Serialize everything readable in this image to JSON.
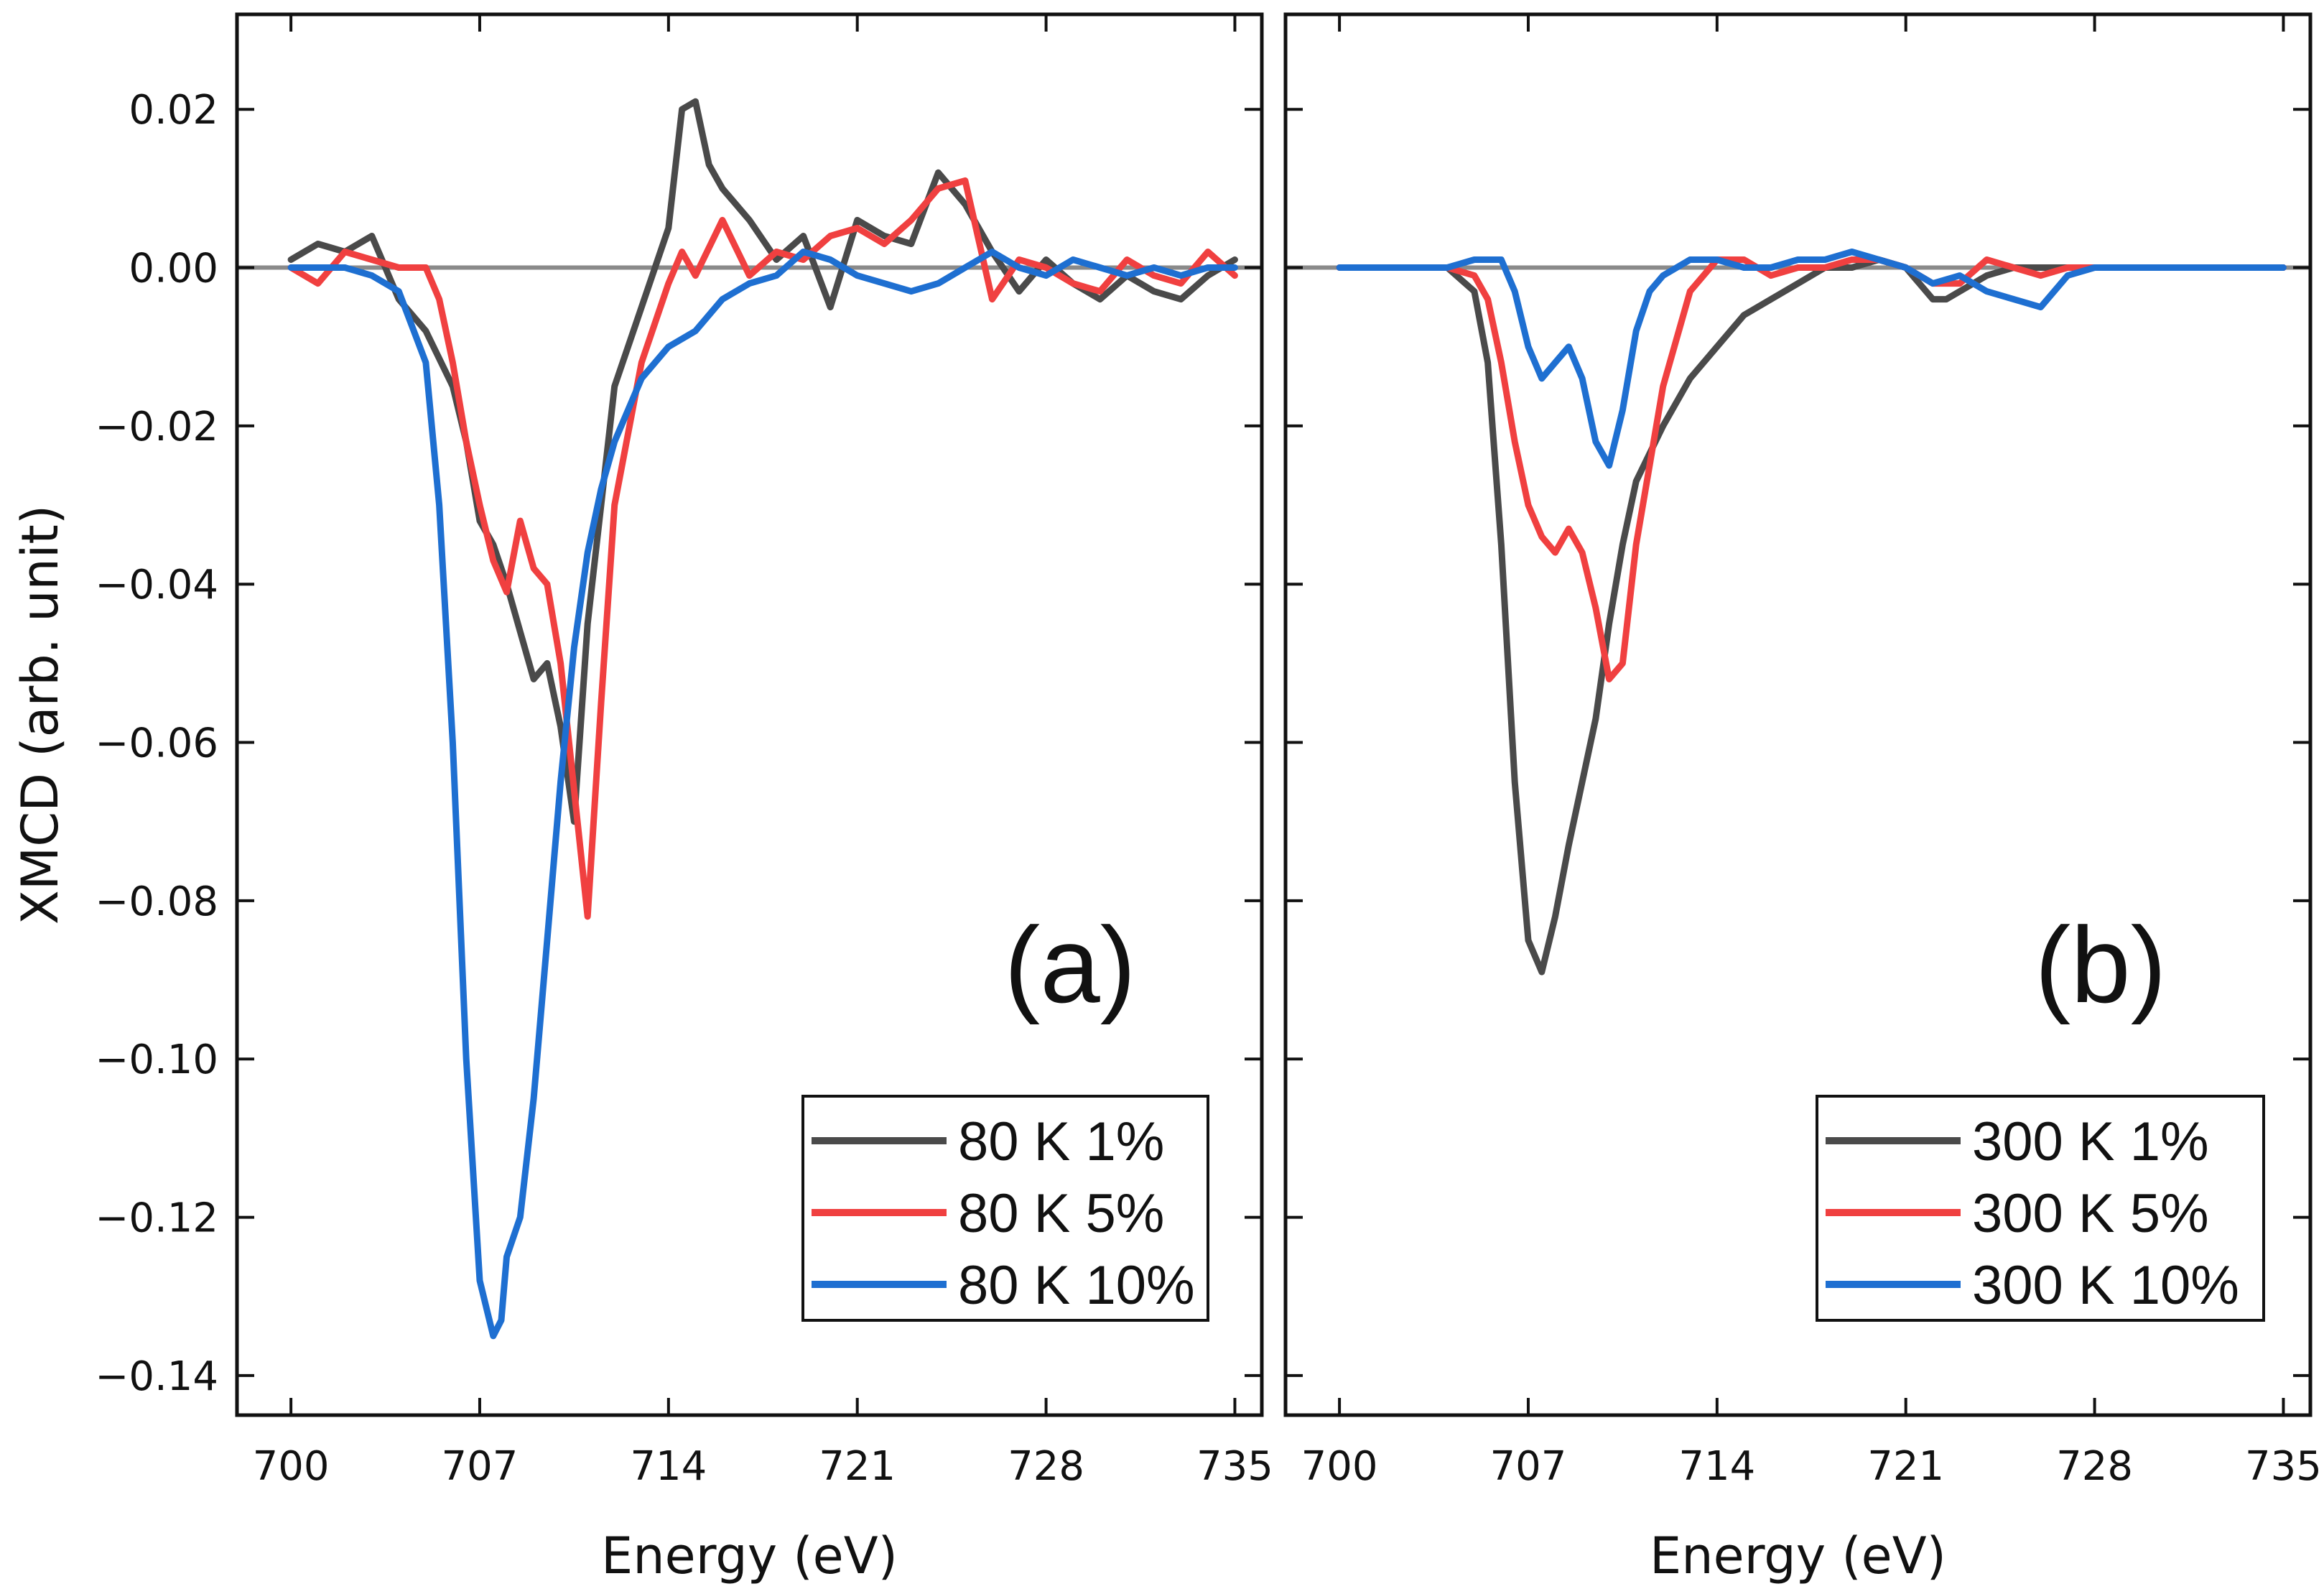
{
  "chart_data": [
    {
      "type": "line",
      "panel_label": "(a)",
      "xlabel": "Energy (eV)",
      "ylabel": "XMCD (arb. unit)",
      "xlim": [
        698,
        736
      ],
      "ylim": [
        -0.145,
        0.032
      ],
      "xticks": [
        700,
        707,
        714,
        721,
        728,
        735
      ],
      "xtick_labels": [
        "700",
        "707",
        "714",
        "721",
        "728",
        "735"
      ],
      "yticks": [
        0.02,
        0.0,
        -0.02,
        -0.04,
        -0.06,
        -0.08,
        -0.1,
        -0.12,
        -0.14
      ],
      "ytick_labels": [
        "0.02",
        "0.00",
        "−0.02",
        "−0.04",
        "−0.06",
        "−0.08",
        "−0.10",
        "−0.12",
        "−0.14"
      ],
      "zero_line": true,
      "legend_position": "bottom-right",
      "series": [
        {
          "name": "80 K 1%",
          "color": "#4a4a4a",
          "x": [
            700,
            701,
            702,
            703,
            704,
            705,
            706,
            706.5,
            707,
            707.5,
            708,
            708.5,
            709,
            709.5,
            710,
            710.5,
            711,
            711.5,
            712,
            713,
            714,
            714.5,
            715,
            715.5,
            716,
            717,
            718,
            719,
            720,
            721,
            722,
            723,
            724,
            725,
            726,
            727,
            728,
            729,
            730,
            731,
            732,
            733,
            734,
            735
          ],
          "values": [
            0.001,
            0.003,
            0.002,
            0.004,
            -0.004,
            -0.008,
            -0.015,
            -0.022,
            -0.032,
            -0.035,
            -0.04,
            -0.046,
            -0.052,
            -0.05,
            -0.058,
            -0.07,
            -0.045,
            -0.03,
            -0.015,
            -0.005,
            0.005,
            0.02,
            0.021,
            0.013,
            0.01,
            0.006,
            0.001,
            0.004,
            -0.005,
            0.006,
            0.004,
            0.003,
            0.012,
            0.008,
            0.002,
            -0.003,
            0.001,
            -0.002,
            -0.004,
            -0.001,
            -0.003,
            -0.004,
            -0.001,
            0.001
          ]
        },
        {
          "name": "80 K 5%",
          "color": "#f04040",
          "x": [
            700,
            701,
            702,
            703,
            704,
            705,
            705.5,
            706,
            706.5,
            707,
            707.5,
            708,
            708.5,
            709,
            709.5,
            710,
            710.5,
            711,
            711.5,
            712,
            713,
            714,
            714.5,
            715,
            716,
            717,
            718,
            719,
            720,
            721,
            722,
            723,
            724,
            725,
            726,
            727,
            728,
            729,
            730,
            731,
            732,
            733,
            734,
            735
          ],
          "values": [
            0.0,
            -0.002,
            0.002,
            0.001,
            0.0,
            0.0,
            -0.004,
            -0.012,
            -0.022,
            -0.03,
            -0.037,
            -0.041,
            -0.032,
            -0.038,
            -0.04,
            -0.05,
            -0.066,
            -0.082,
            -0.055,
            -0.03,
            -0.012,
            -0.002,
            0.002,
            -0.001,
            0.006,
            -0.001,
            0.002,
            0.001,
            0.004,
            0.005,
            0.003,
            0.006,
            0.01,
            0.011,
            -0.004,
            0.001,
            0.0,
            -0.002,
            -0.003,
            0.001,
            -0.001,
            -0.002,
            0.002,
            -0.001
          ]
        },
        {
          "name": "80 K 10%",
          "color": "#1e6fd1",
          "x": [
            700,
            701,
            702,
            703,
            704,
            705,
            705.5,
            706,
            706.5,
            707,
            707.5,
            707.8,
            708,
            708.5,
            709,
            709.5,
            710,
            710.5,
            711,
            711.5,
            712,
            713,
            714,
            715,
            716,
            717,
            718,
            719,
            720,
            721,
            722,
            723,
            724,
            725,
            726,
            727,
            728,
            729,
            730,
            731,
            732,
            733,
            734,
            735
          ],
          "values": [
            0.0,
            0.0,
            0.0,
            -0.001,
            -0.003,
            -0.012,
            -0.03,
            -0.06,
            -0.1,
            -0.128,
            -0.135,
            -0.133,
            -0.125,
            -0.12,
            -0.105,
            -0.085,
            -0.065,
            -0.048,
            -0.036,
            -0.028,
            -0.022,
            -0.014,
            -0.01,
            -0.008,
            -0.004,
            -0.002,
            -0.001,
            0.002,
            0.001,
            -0.001,
            -0.002,
            -0.003,
            -0.002,
            0.0,
            0.002,
            0.0,
            -0.001,
            0.001,
            0.0,
            -0.001,
            0.0,
            -0.001,
            0.0,
            0.0
          ]
        }
      ]
    },
    {
      "type": "line",
      "panel_label": "(b)",
      "xlabel": "Energy (eV)",
      "ylabel": "",
      "xlim": [
        698,
        736
      ],
      "ylim": [
        -0.145,
        0.032
      ],
      "xticks": [
        700,
        707,
        714,
        721,
        728,
        735
      ],
      "xtick_labels": [
        "700",
        "707",
        "714",
        "721",
        "728",
        "735"
      ],
      "yticks": [
        0.02,
        0.0,
        -0.02,
        -0.04,
        -0.06,
        -0.08,
        -0.1,
        -0.12,
        -0.14
      ],
      "ytick_labels": [],
      "zero_line": true,
      "legend_position": "bottom-right",
      "series": [
        {
          "name": "300 K 1%",
          "color": "#4a4a4a",
          "x": [
            700,
            702,
            704,
            705,
            705.5,
            706,
            706.5,
            707,
            707.5,
            708,
            708.5,
            709,
            709.5,
            710,
            710.5,
            711,
            712,
            713,
            714,
            715,
            716,
            717,
            718,
            719,
            720,
            721,
            722,
            722.5,
            723,
            724,
            725,
            726,
            727,
            728,
            730,
            732,
            735
          ],
          "values": [
            0.0,
            0.0,
            0.0,
            -0.003,
            -0.012,
            -0.035,
            -0.065,
            -0.085,
            -0.089,
            -0.082,
            -0.073,
            -0.065,
            -0.057,
            -0.045,
            -0.035,
            -0.027,
            -0.02,
            -0.014,
            -0.01,
            -0.006,
            -0.004,
            -0.002,
            0.0,
            0.0,
            0.001,
            0.0,
            -0.004,
            -0.004,
            -0.003,
            -0.001,
            0.0,
            0.0,
            0.0,
            0.0,
            0.0,
            0.0,
            0.0
          ]
        },
        {
          "name": "300 K 5%",
          "color": "#f04040",
          "x": [
            700,
            702,
            704,
            705,
            705.5,
            706,
            706.5,
            707,
            707.5,
            708,
            708.5,
            709,
            709.5,
            710,
            710.5,
            711,
            712,
            713,
            714,
            715,
            716,
            717,
            718,
            719,
            720,
            721,
            722,
            723,
            724,
            725,
            726,
            727,
            728,
            730,
            732,
            735
          ],
          "values": [
            0.0,
            0.0,
            0.0,
            -0.001,
            -0.004,
            -0.012,
            -0.022,
            -0.03,
            -0.034,
            -0.036,
            -0.033,
            -0.036,
            -0.043,
            -0.052,
            -0.05,
            -0.035,
            -0.015,
            -0.003,
            0.001,
            0.001,
            -0.001,
            0.0,
            0.0,
            0.001,
            0.001,
            0.0,
            -0.002,
            -0.002,
            0.001,
            0.0,
            -0.001,
            0.0,
            0.0,
            0.0,
            0.0,
            0.0
          ]
        },
        {
          "name": "300 K 10%",
          "color": "#1e6fd1",
          "x": [
            700,
            702,
            704,
            705,
            706,
            706.5,
            707,
            707.5,
            708,
            708.5,
            709,
            709.5,
            710,
            710.5,
            711,
            711.5,
            712,
            713,
            714,
            715,
            716,
            717,
            718,
            719,
            720,
            721,
            722,
            723,
            724,
            725,
            726,
            727,
            728,
            730,
            732,
            735
          ],
          "values": [
            0.0,
            0.0,
            0.0,
            0.001,
            0.001,
            -0.003,
            -0.01,
            -0.014,
            -0.012,
            -0.01,
            -0.014,
            -0.022,
            -0.025,
            -0.018,
            -0.008,
            -0.003,
            -0.001,
            0.001,
            0.001,
            0.0,
            0.0,
            0.001,
            0.001,
            0.002,
            0.001,
            0.0,
            -0.002,
            -0.001,
            -0.003,
            -0.004,
            -0.005,
            -0.001,
            0.0,
            0.0,
            0.0,
            0.0
          ]
        }
      ]
    }
  ]
}
